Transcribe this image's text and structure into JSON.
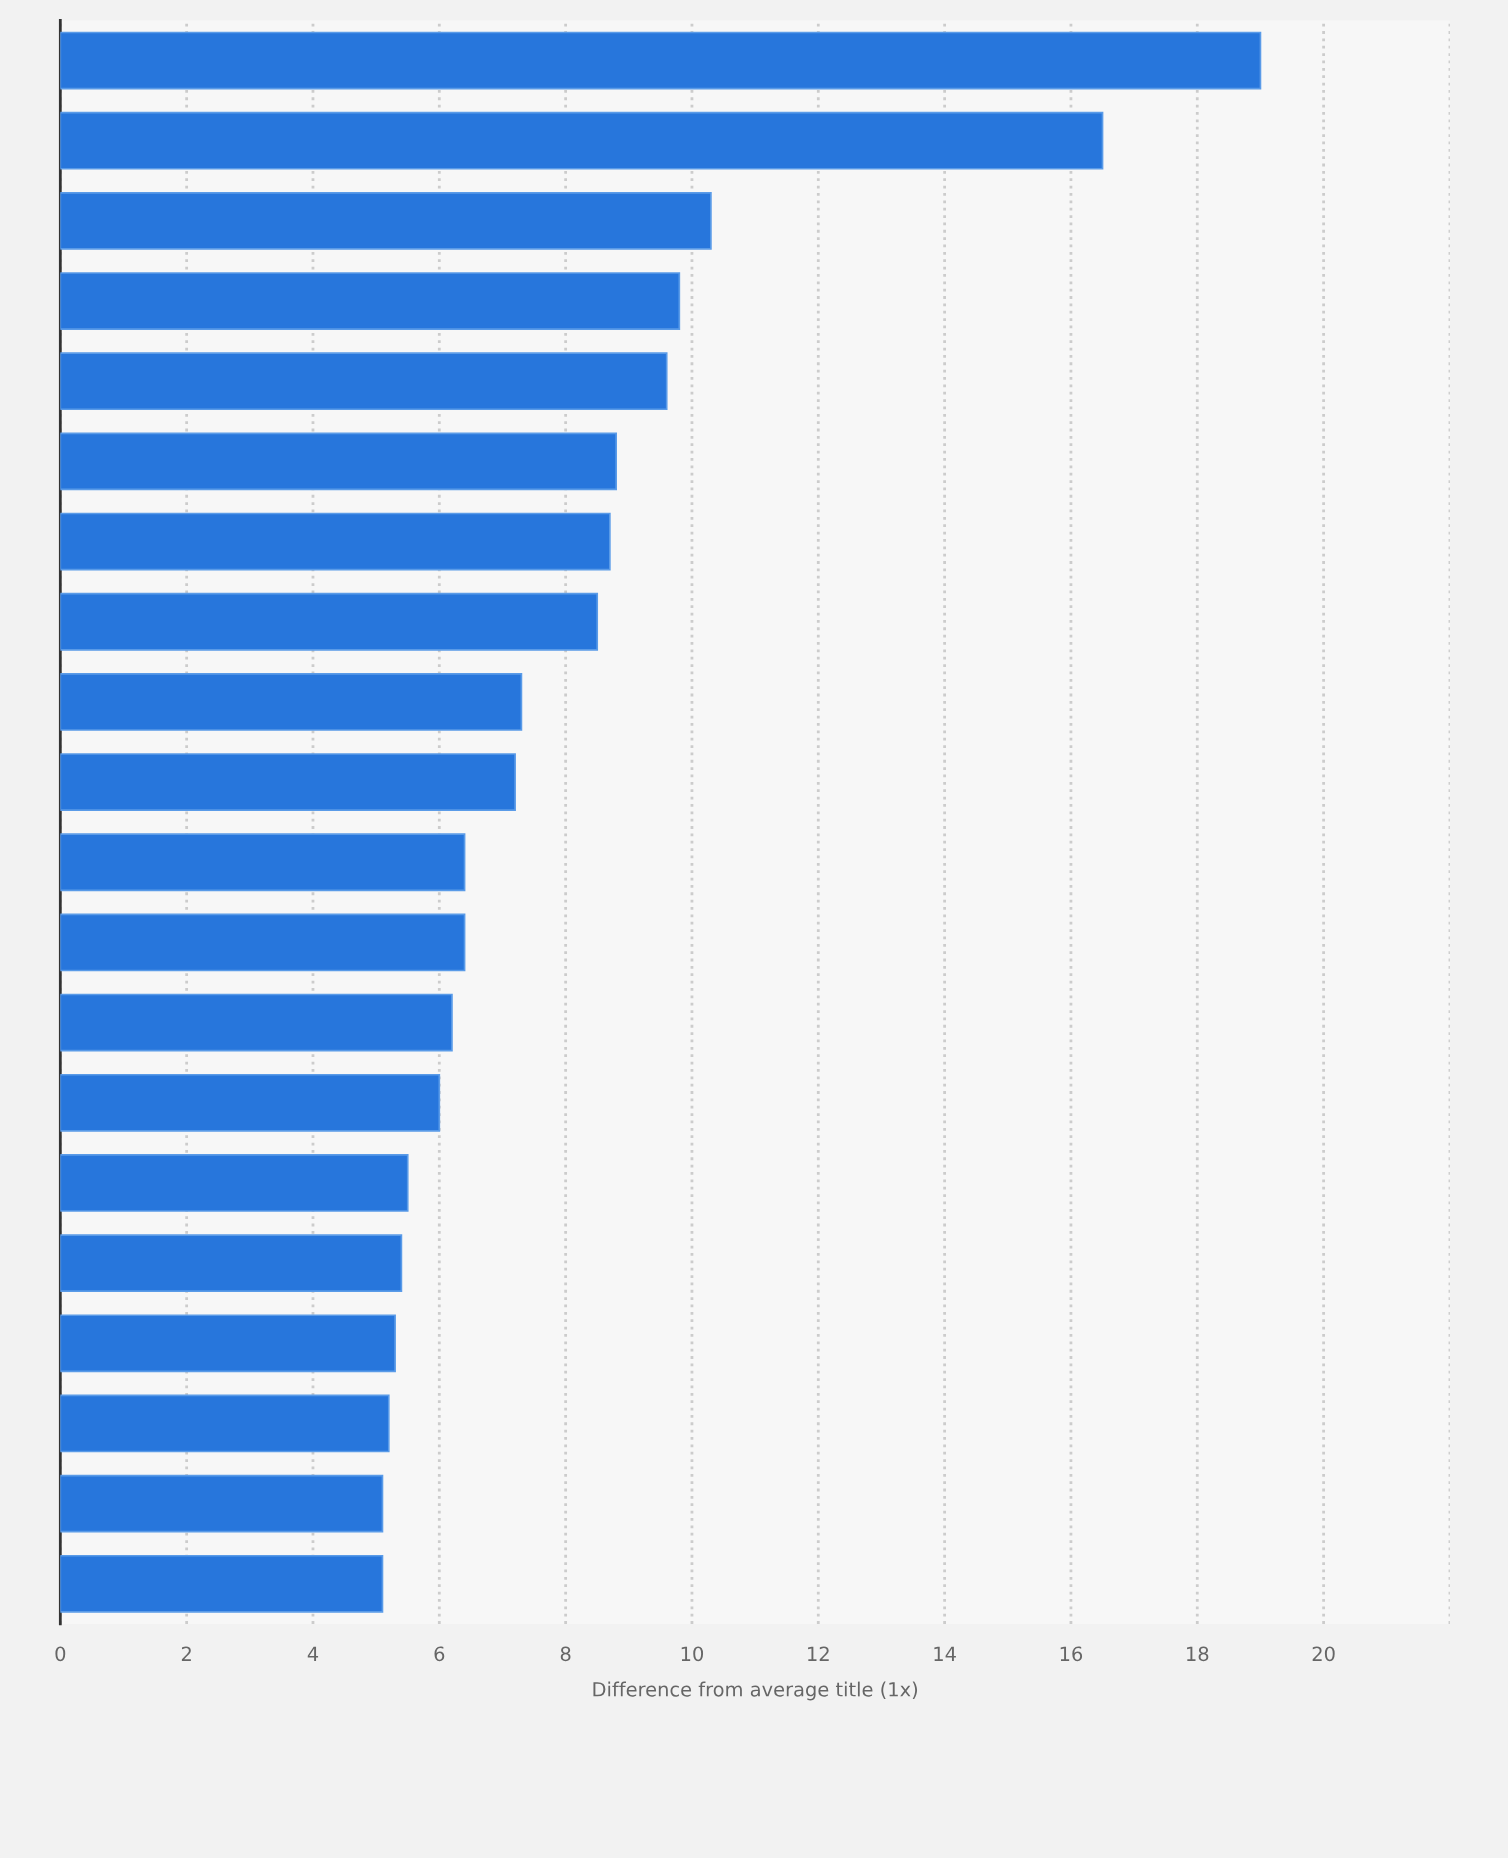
{
  "chart_data": {
    "type": "bar",
    "orientation": "horizontal",
    "xlabel": "Difference from average title (1x)",
    "categories": [
      null,
      null,
      null,
      null,
      null,
      null,
      null,
      null,
      null,
      null,
      null,
      null,
      null,
      null,
      null,
      null,
      null,
      null,
      null,
      null
    ],
    "values": [
      19.0,
      16.5,
      10.3,
      9.8,
      9.6,
      8.8,
      8.7,
      8.5,
      7.3,
      7.2,
      6.4,
      6.4,
      6.2,
      6.0,
      5.5,
      5.4,
      5.3,
      5.2,
      5.1,
      5.1
    ],
    "color": "#2776dc",
    "xlim": [
      0,
      22
    ],
    "xticks": [
      0,
      2,
      4,
      6,
      8,
      10,
      12,
      14,
      16,
      18,
      20,
      {
        "value": 22,
        "label": null
      }
    ],
    "grid": "x",
    "tick_labels": "x",
    "legend": false
  }
}
